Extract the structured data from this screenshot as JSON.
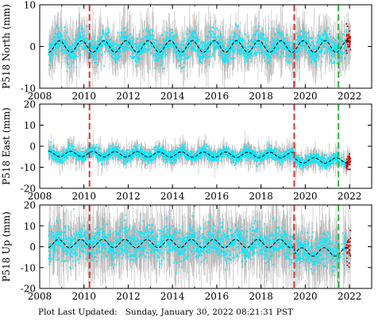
{
  "footer_text": "Plot Last Updated:   Sunday, January 30, 2022 08:21:31 PST",
  "colors": {
    "obs": "#00eaff",
    "error_bar": "#b4b4b4",
    "model": "#000000",
    "recent": "#cc0000",
    "equipment_change": "#e8302a",
    "marker_green": "#2fb43a"
  },
  "chart_data": [
    {
      "type": "scatter",
      "station": "P518",
      "component": "North",
      "ylabel": "P518 North (mm)",
      "xlim": [
        2008,
        2023
      ],
      "ylim": [
        -10,
        10
      ],
      "x_ticks": [
        2008,
        2010,
        2012,
        2014,
        2016,
        2018,
        2020,
        2022
      ],
      "y_ticks": [
        -10,
        0,
        10
      ],
      "grid": false,
      "data_start": 2008.4,
      "data_end": 2022.05,
      "seasonal_model": {
        "offset": 0.0,
        "amplitude": 1.4,
        "phase_year": 0.65,
        "trend_per_year": 0.0
      },
      "scatter_sd": 1.5,
      "error_bar_sd": 2.6,
      "vertical_lines": [
        {
          "x": 2010.25,
          "color": "equipment_change"
        },
        {
          "x": 2019.5,
          "color": "equipment_change"
        },
        {
          "x": 2021.5,
          "color": "marker_green"
        }
      ]
    },
    {
      "type": "scatter",
      "station": "P518",
      "component": "East",
      "ylabel": "P518 East (mm)",
      "xlim": [
        2008,
        2023
      ],
      "ylim": [
        -20,
        20
      ],
      "x_ticks": [
        2008,
        2010,
        2012,
        2014,
        2016,
        2018,
        2020,
        2022
      ],
      "y_ticks": [
        -20,
        -10,
        0,
        10,
        20
      ],
      "grid": false,
      "data_start": 2008.4,
      "data_end": 2022.05,
      "seasonal_model": {
        "offset": -4.0,
        "amplitude": 1.3,
        "phase_year": 0.15,
        "trend_per_year": -0.05,
        "step_at": 2019.5,
        "step_size": -2.5
      },
      "scatter_sd": 1.4,
      "error_bar_sd": 2.4,
      "vertical_lines": [
        {
          "x": 2010.25,
          "color": "equipment_change"
        },
        {
          "x": 2019.5,
          "color": "equipment_change"
        },
        {
          "x": 2021.5,
          "color": "marker_green"
        }
      ]
    },
    {
      "type": "scatter",
      "station": "P518",
      "component": "Up",
      "ylabel": "P518 Up (mm)",
      "xlim": [
        2008,
        2023
      ],
      "ylim": [
        -20,
        20
      ],
      "x_ticks": [
        2008,
        2010,
        2012,
        2014,
        2016,
        2018,
        2020,
        2022
      ],
      "x_tick_labels": [
        "2008",
        "2010",
        "2012",
        "2014",
        "2016",
        "2018",
        "2020",
        "2022"
      ],
      "y_ticks": [
        -20,
        -10,
        0,
        10,
        20
      ],
      "grid": false,
      "data_start": 2008.4,
      "data_end": 2022.05,
      "seasonal_model": {
        "offset": 1.5,
        "amplitude": 2.0,
        "phase_year": 0.6,
        "trend_per_year": 0.0,
        "step_at": 2019.5,
        "step_size": -4.0
      },
      "scatter_sd": 4.0,
      "error_bar_sd": 7.0,
      "vertical_lines": [
        {
          "x": 2010.25,
          "color": "equipment_change"
        },
        {
          "x": 2019.5,
          "color": "equipment_change"
        },
        {
          "x": 2021.5,
          "color": "marker_green"
        }
      ]
    }
  ]
}
